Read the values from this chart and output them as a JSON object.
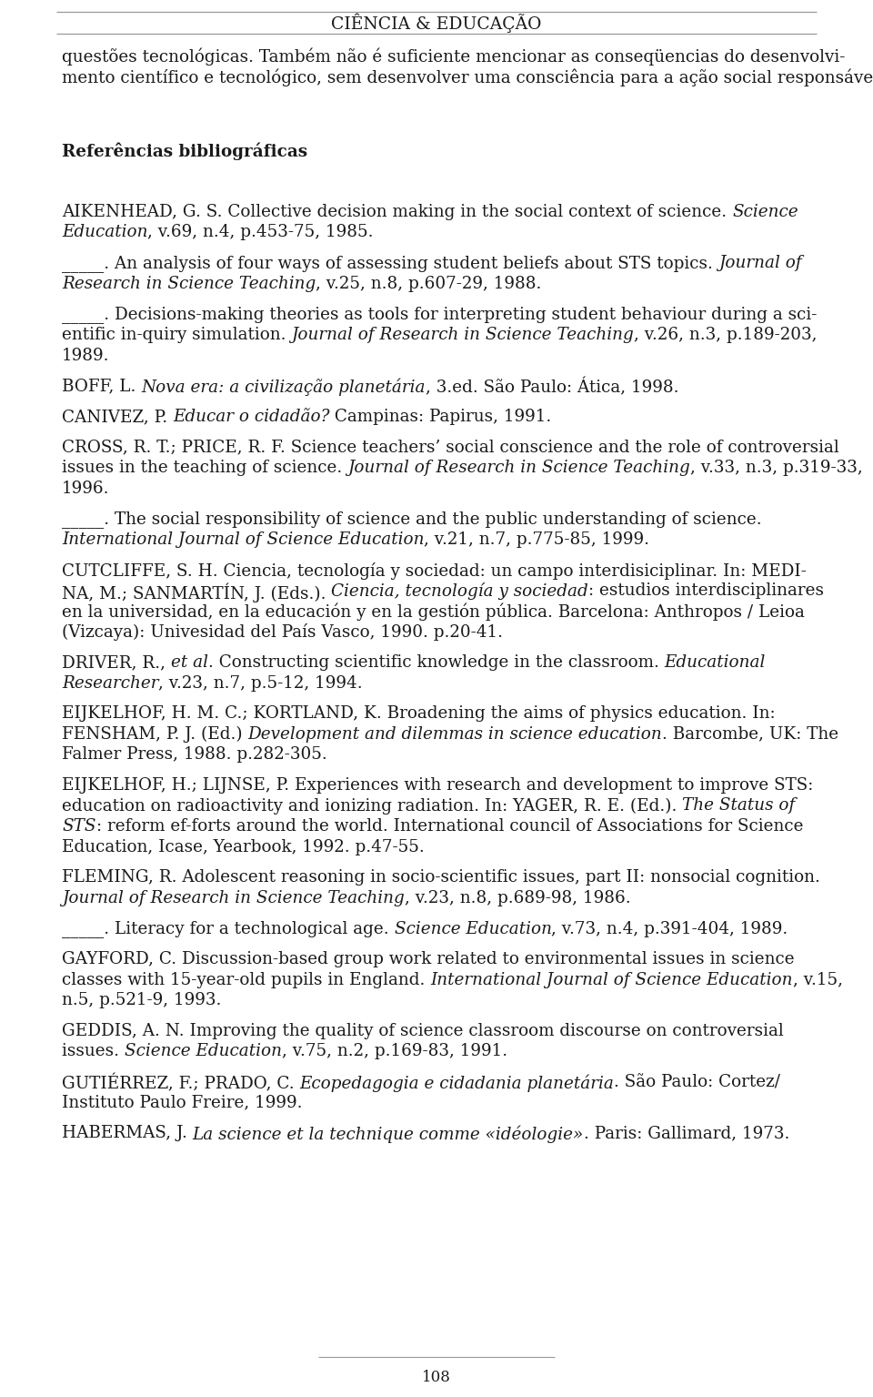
{
  "header_title": "CIÊNCIA & EDUCAÇÃO",
  "page_number": "108",
  "background_color": "#ffffff",
  "text_color": "#1a1a1a",
  "body_fs": 13.2,
  "header_fs": 13.5,
  "page_fs": 12,
  "lh": 22.5,
  "lm": 68,
  "rm": 892,
  "lines_data": [
    {
      "segs": [
        [
          "questões tecnológicas. Também não é suficiente mencionar as conseqüencias do desenvolvi-",
          false,
          false
        ]
      ],
      "sp": 1.0
    },
    {
      "segs": [
        [
          "mento científico e tecnológico, sem desenvolver uma consciência para a ação social responsável.",
          false,
          false
        ]
      ],
      "sp": 1.0
    },
    {
      "segs": [],
      "sp": 1.3
    },
    {
      "segs": [],
      "sp": 1.3
    },
    {
      "segs": [
        [
          "Referências bibliográficas",
          false,
          true
        ]
      ],
      "sp": 1.0
    },
    {
      "segs": [],
      "sp": 1.3
    },
    {
      "segs": [],
      "sp": 0.7
    },
    {
      "segs": [
        [
          "AIKENHEAD, G. S. Collective decision making in the social context of science. ",
          false,
          false
        ],
        [
          "Science",
          true,
          false
        ]
      ],
      "sp": 1.0
    },
    {
      "segs": [
        [
          "Education",
          true,
          false
        ],
        [
          ", v.69, n.4, p.453-75, 1985.",
          false,
          false
        ]
      ],
      "sp": 1.0
    },
    {
      "segs": [],
      "sp": 0.5
    },
    {
      "segs": [
        [
          "_____. An analysis of four ways of assessing student beliefs about STS topics. ",
          false,
          false
        ],
        [
          "Journal of",
          true,
          false
        ]
      ],
      "sp": 1.0
    },
    {
      "segs": [
        [
          "Research in Science Teaching",
          true,
          false
        ],
        [
          ", v.25, n.8, p.607-29, 1988.",
          false,
          false
        ]
      ],
      "sp": 1.0
    },
    {
      "segs": [],
      "sp": 0.5
    },
    {
      "segs": [
        [
          "_____. Decisions-making theories as tools for interpreting student behaviour during a sci-",
          false,
          false
        ]
      ],
      "sp": 1.0
    },
    {
      "segs": [
        [
          "entific in-quiry simulation. ",
          false,
          false
        ],
        [
          "Journal of Research in Science Teaching",
          true,
          false
        ],
        [
          ", v.26, n.3, p.189-203,",
          false,
          false
        ]
      ],
      "sp": 1.0
    },
    {
      "segs": [
        [
          "1989.",
          false,
          false
        ]
      ],
      "sp": 1.0
    },
    {
      "segs": [],
      "sp": 0.5
    },
    {
      "segs": [
        [
          "BOFF, L. ",
          false,
          false
        ],
        [
          "Nova era: a civilização planetária",
          true,
          false
        ],
        [
          ", 3.ed. São Paulo: Ática, 1998.",
          false,
          false
        ]
      ],
      "sp": 1.0
    },
    {
      "segs": [],
      "sp": 0.5
    },
    {
      "segs": [
        [
          "CANIVEZ, P. ",
          false,
          false
        ],
        [
          "Educar o cidadão?",
          true,
          false
        ],
        [
          " Campinas: Papirus, 1991.",
          false,
          false
        ]
      ],
      "sp": 1.0
    },
    {
      "segs": [],
      "sp": 0.5
    },
    {
      "segs": [
        [
          "CROSS, R. T.; PRICE, R. F. Science teachers’ social conscience and the role of controversial",
          false,
          false
        ]
      ],
      "sp": 1.0
    },
    {
      "segs": [
        [
          "issues in the teaching of science. ",
          false,
          false
        ],
        [
          "Journal of Research in Science Teaching",
          true,
          false
        ],
        [
          ", v.33, n.3, p.319-33,",
          false,
          false
        ]
      ],
      "sp": 1.0
    },
    {
      "segs": [
        [
          "1996.",
          false,
          false
        ]
      ],
      "sp": 1.0
    },
    {
      "segs": [],
      "sp": 0.5
    },
    {
      "segs": [
        [
          "_____. The social responsibility of science and the public understanding of science.",
          false,
          false
        ]
      ],
      "sp": 1.0
    },
    {
      "segs": [
        [
          "International Journal of Science Education",
          true,
          false
        ],
        [
          ", v.21, n.7, p.775-85, 1999.",
          false,
          false
        ]
      ],
      "sp": 1.0
    },
    {
      "segs": [],
      "sp": 0.5
    },
    {
      "segs": [
        [
          "CUTCLIFFE, S. H. Ciencia, tecnología y sociedad: un campo interdisiciplinar. In: MEDI-",
          false,
          false
        ]
      ],
      "sp": 1.0
    },
    {
      "segs": [
        [
          "NA, M.; SANMARTÍN, J. (Eds.). ",
          false,
          false
        ],
        [
          "Ciencia, tecnología y sociedad",
          true,
          false
        ],
        [
          ": estudios interdisciplinares",
          false,
          false
        ]
      ],
      "sp": 1.0
    },
    {
      "segs": [
        [
          "en la universidad, en la educación y en la gestión pública. Barcelona: Anthropos / Leioa",
          false,
          false
        ]
      ],
      "sp": 1.0
    },
    {
      "segs": [
        [
          "(Vizcaya): Univesidad del País Vasco, 1990. p.20-41.",
          false,
          false
        ]
      ],
      "sp": 1.0
    },
    {
      "segs": [],
      "sp": 0.5
    },
    {
      "segs": [
        [
          "DRIVER, R., ",
          false,
          false
        ],
        [
          "et al",
          true,
          false
        ],
        [
          ". Constructing scientific knowledge in the classroom. ",
          false,
          false
        ],
        [
          "Educational",
          true,
          false
        ]
      ],
      "sp": 1.0
    },
    {
      "segs": [
        [
          "Researcher",
          true,
          false
        ],
        [
          ", v.23, n.7, p.5-12, 1994.",
          false,
          false
        ]
      ],
      "sp": 1.0
    },
    {
      "segs": [],
      "sp": 0.5
    },
    {
      "segs": [
        [
          "EIJKELHOF, H. M. C.; KORTLAND, K. Broadening the aims of physics education. In:",
          false,
          false
        ]
      ],
      "sp": 1.0
    },
    {
      "segs": [
        [
          "FENSHAM, P. J. (Ed.) ",
          false,
          false
        ],
        [
          "Development and dilemmas in science education",
          true,
          false
        ],
        [
          ". Barcombe, UK: The",
          false,
          false
        ]
      ],
      "sp": 1.0
    },
    {
      "segs": [
        [
          "Falmer Press, 1988. p.282-305.",
          false,
          false
        ]
      ],
      "sp": 1.0
    },
    {
      "segs": [],
      "sp": 0.5
    },
    {
      "segs": [
        [
          "EIJKELHOF, H.; LIJNSE, P. Experiences with research and development to improve STS:",
          false,
          false
        ]
      ],
      "sp": 1.0
    },
    {
      "segs": [
        [
          "education on radioactivity and ionizing radiation. In: YAGER, R. E. (Ed.). ",
          false,
          false
        ],
        [
          "The Status of",
          true,
          false
        ]
      ],
      "sp": 1.0
    },
    {
      "segs": [
        [
          "STS",
          true,
          false
        ],
        [
          ": reform ef-forts around the world. International council of Associations for Science",
          false,
          false
        ]
      ],
      "sp": 1.0
    },
    {
      "segs": [
        [
          "Education, Icase, Yearbook, 1992. p.47-55.",
          false,
          false
        ]
      ],
      "sp": 1.0
    },
    {
      "segs": [],
      "sp": 0.5
    },
    {
      "segs": [
        [
          "FLEMING, R. Adolescent reasoning in socio-scientific issues, part II: nonsocial cognition.",
          false,
          false
        ]
      ],
      "sp": 1.0
    },
    {
      "segs": [
        [
          "Journal of Research in Science Teaching",
          true,
          false
        ],
        [
          ", v.23, n.8, p.689-98, 1986.",
          false,
          false
        ]
      ],
      "sp": 1.0
    },
    {
      "segs": [],
      "sp": 0.5
    },
    {
      "segs": [
        [
          "_____. Literacy for a technological age. ",
          false,
          false
        ],
        [
          "Science Education",
          true,
          false
        ],
        [
          ", v.73, n.4, p.391-404, 1989.",
          false,
          false
        ]
      ],
      "sp": 1.0
    },
    {
      "segs": [],
      "sp": 0.5
    },
    {
      "segs": [
        [
          "GAYFORD, C. Discussion-based group work related to environmental issues in science",
          false,
          false
        ]
      ],
      "sp": 1.0
    },
    {
      "segs": [
        [
          "classes with 15-year-old pupils in England. ",
          false,
          false
        ],
        [
          "International Journal of Science Education",
          true,
          false
        ],
        [
          ", v.15,",
          false,
          false
        ]
      ],
      "sp": 1.0
    },
    {
      "segs": [
        [
          "n.5, p.521-9, 1993.",
          false,
          false
        ]
      ],
      "sp": 1.0
    },
    {
      "segs": [],
      "sp": 0.5
    },
    {
      "segs": [
        [
          "GEDDIS, A. N. Improving the quality of science classroom discourse on controversial",
          false,
          false
        ]
      ],
      "sp": 1.0
    },
    {
      "segs": [
        [
          "issues. ",
          false,
          false
        ],
        [
          "Science Education",
          true,
          false
        ],
        [
          ", v.75, n.2, p.169-83, 1991.",
          false,
          false
        ]
      ],
      "sp": 1.0
    },
    {
      "segs": [],
      "sp": 0.5
    },
    {
      "segs": [
        [
          "GUTIÉRREZ, F.; PRADO, C. ",
          false,
          false
        ],
        [
          "Ecopedagogia e cidadania planetária",
          true,
          false
        ],
        [
          ". São Paulo: Cortez/",
          false,
          false
        ]
      ],
      "sp": 1.0
    },
    {
      "segs": [
        [
          "Instituto Paulo Freire, 1999.",
          false,
          false
        ]
      ],
      "sp": 1.0
    },
    {
      "segs": [],
      "sp": 0.5
    },
    {
      "segs": [
        [
          "HABERMAS, J. ",
          false,
          false
        ],
        [
          "La science et la technique comme «idéologie»",
          true,
          false
        ],
        [
          ". Paris: Gallimard, 1973.",
          false,
          false
        ]
      ],
      "sp": 1.0
    }
  ]
}
